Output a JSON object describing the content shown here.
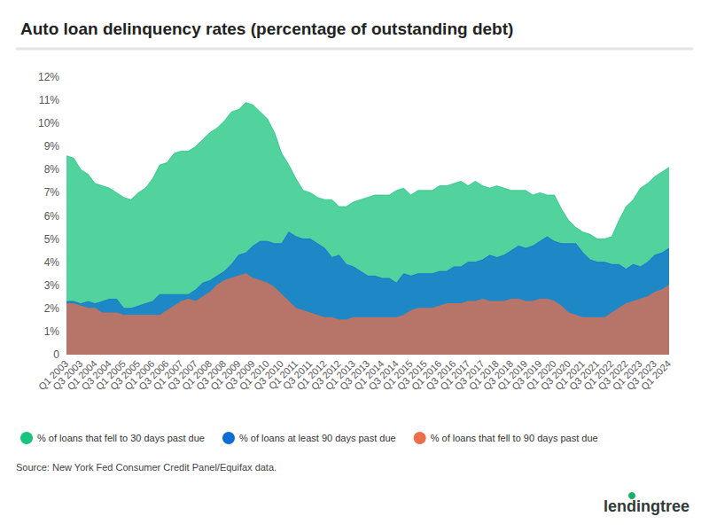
{
  "chart_data": {
    "type": "area",
    "title": "Auto loan delinquency rates (percentage of outstanding debt)",
    "source": "Source: New York Fed Consumer Credit Panel/Equifax data.",
    "brand": "lendingtree",
    "categories": [
      "Q1 2003",
      null,
      "Q3 2003",
      null,
      "Q1 2004",
      null,
      "Q3 2004",
      null,
      "Q1 2005",
      null,
      "Q3 2005",
      null,
      "Q1 2006",
      null,
      "Q3 2006",
      null,
      "Q1 2007",
      null,
      "Q3 2007",
      null,
      "Q1 2008",
      null,
      "Q3 2008",
      null,
      "Q1 2009",
      null,
      "Q3 2009",
      null,
      "Q1 2010",
      null,
      "Q3 2010",
      null,
      "Q1 2011",
      null,
      "Q3 2011",
      null,
      "Q1 2012",
      null,
      "Q3 2012",
      null,
      "Q1 2013",
      null,
      "Q3 2013",
      null,
      "Q1 2014",
      null,
      "Q3 2014",
      null,
      "Q1 2015",
      null,
      "Q3 2015",
      null,
      "Q1 2016",
      null,
      "Q3 2016",
      null,
      "Q1 2017",
      null,
      "Q3 2017",
      null,
      "Q1 2018",
      null,
      "Q3 2018",
      null,
      "Q1 2019",
      null,
      "Q3 2019",
      null,
      "Q1 2020",
      null,
      "Q3 2020",
      null,
      "Q1 2021",
      null,
      "Q3 2021",
      null,
      "Q1 2022",
      null,
      "Q3 2022",
      null,
      "Q1 2023",
      null,
      "Q3 2023",
      null,
      "Q1 2024"
    ],
    "series": [
      {
        "name": "% of loans that fell to 30 days past due",
        "color": "#18c47e",
        "values": [
          8.6,
          8.5,
          8.0,
          7.8,
          7.4,
          7.3,
          7.2,
          7.0,
          6.8,
          6.7,
          7.0,
          7.2,
          7.6,
          8.2,
          8.3,
          8.7,
          8.8,
          8.8,
          9.0,
          9.3,
          9.6,
          9.8,
          10.1,
          10.5,
          10.6,
          10.9,
          10.8,
          10.5,
          10.2,
          9.6,
          8.7,
          8.2,
          7.6,
          7.1,
          7.0,
          6.8,
          6.7,
          6.7,
          6.4,
          6.4,
          6.6,
          6.7,
          6.8,
          6.9,
          6.9,
          6.9,
          7.1,
          7.2,
          6.9,
          7.1,
          7.1,
          7.1,
          7.3,
          7.3,
          7.4,
          7.5,
          7.3,
          7.5,
          7.3,
          7.2,
          7.3,
          7.2,
          7.1,
          7.1,
          7.1,
          6.9,
          7.0,
          6.9,
          6.9,
          6.3,
          5.8,
          5.5,
          5.3,
          5.2,
          5.0,
          5.0,
          5.1,
          5.8,
          6.4,
          6.7,
          7.2,
          7.4,
          7.7,
          7.9,
          8.1
        ]
      },
      {
        "name": "% of loans at least 90 days past due",
        "color": "#0e6ed1",
        "values": [
          2.3,
          2.3,
          2.2,
          2.3,
          2.2,
          2.3,
          2.4,
          2.4,
          2.0,
          2.0,
          2.1,
          2.2,
          2.3,
          2.6,
          2.6,
          2.6,
          2.6,
          2.6,
          2.8,
          3.1,
          3.2,
          3.4,
          3.6,
          3.9,
          4.3,
          4.4,
          4.7,
          4.9,
          4.9,
          4.8,
          4.8,
          5.3,
          5.1,
          5.0,
          5.0,
          4.8,
          4.6,
          4.2,
          4.3,
          3.9,
          3.8,
          3.6,
          3.4,
          3.4,
          3.3,
          3.3,
          3.1,
          3.5,
          3.4,
          3.5,
          3.5,
          3.5,
          3.6,
          3.6,
          3.8,
          3.8,
          4.0,
          4.0,
          4.1,
          4.3,
          4.2,
          4.3,
          4.5,
          4.7,
          4.6,
          4.7,
          4.9,
          5.1,
          4.9,
          4.8,
          4.8,
          4.8,
          4.4,
          4.1,
          4.0,
          4.0,
          3.9,
          3.9,
          3.7,
          3.9,
          3.8,
          4.0,
          4.3,
          4.4,
          4.6
        ]
      },
      {
        "name": "% of loans that fell to 90 days past due",
        "color": "#eb6f49",
        "values": [
          2.2,
          2.2,
          2.1,
          2.0,
          2.0,
          1.8,
          1.8,
          1.8,
          1.7,
          1.7,
          1.7,
          1.7,
          1.7,
          1.7,
          1.9,
          2.1,
          2.3,
          2.4,
          2.3,
          2.5,
          2.7,
          3.0,
          3.2,
          3.3,
          3.4,
          3.5,
          3.3,
          3.2,
          3.1,
          2.9,
          2.6,
          2.3,
          2.0,
          1.9,
          1.8,
          1.7,
          1.6,
          1.6,
          1.5,
          1.5,
          1.6,
          1.6,
          1.6,
          1.6,
          1.6,
          1.6,
          1.6,
          1.7,
          1.9,
          2.0,
          2.0,
          2.0,
          2.1,
          2.2,
          2.2,
          2.2,
          2.3,
          2.3,
          2.4,
          2.3,
          2.3,
          2.3,
          2.4,
          2.4,
          2.3,
          2.3,
          2.4,
          2.4,
          2.3,
          2.1,
          1.8,
          1.7,
          1.6,
          1.6,
          1.6,
          1.6,
          1.8,
          2.0,
          2.2,
          2.3,
          2.4,
          2.5,
          2.7,
          2.8,
          3.0
        ]
      }
    ],
    "ylim": [
      0,
      12
    ],
    "yticks": [
      0,
      {
        "value": 1,
        "label": "1%"
      },
      {
        "value": 2,
        "label": "2%"
      },
      {
        "value": 3,
        "label": "3%"
      },
      {
        "value": 4,
        "label": "4%"
      },
      {
        "value": 5,
        "label": "5%"
      },
      {
        "value": 6,
        "label": "6%"
      },
      {
        "value": 7,
        "label": "7%"
      },
      {
        "value": 8,
        "label": "8%"
      },
      {
        "value": 9,
        "label": "9%"
      },
      {
        "value": 10,
        "label": "10%"
      },
      {
        "value": 11,
        "label": "11%"
      },
      {
        "value": 12,
        "label": "12%"
      }
    ],
    "stacked": false,
    "grid": false,
    "legend": "bottom"
  }
}
